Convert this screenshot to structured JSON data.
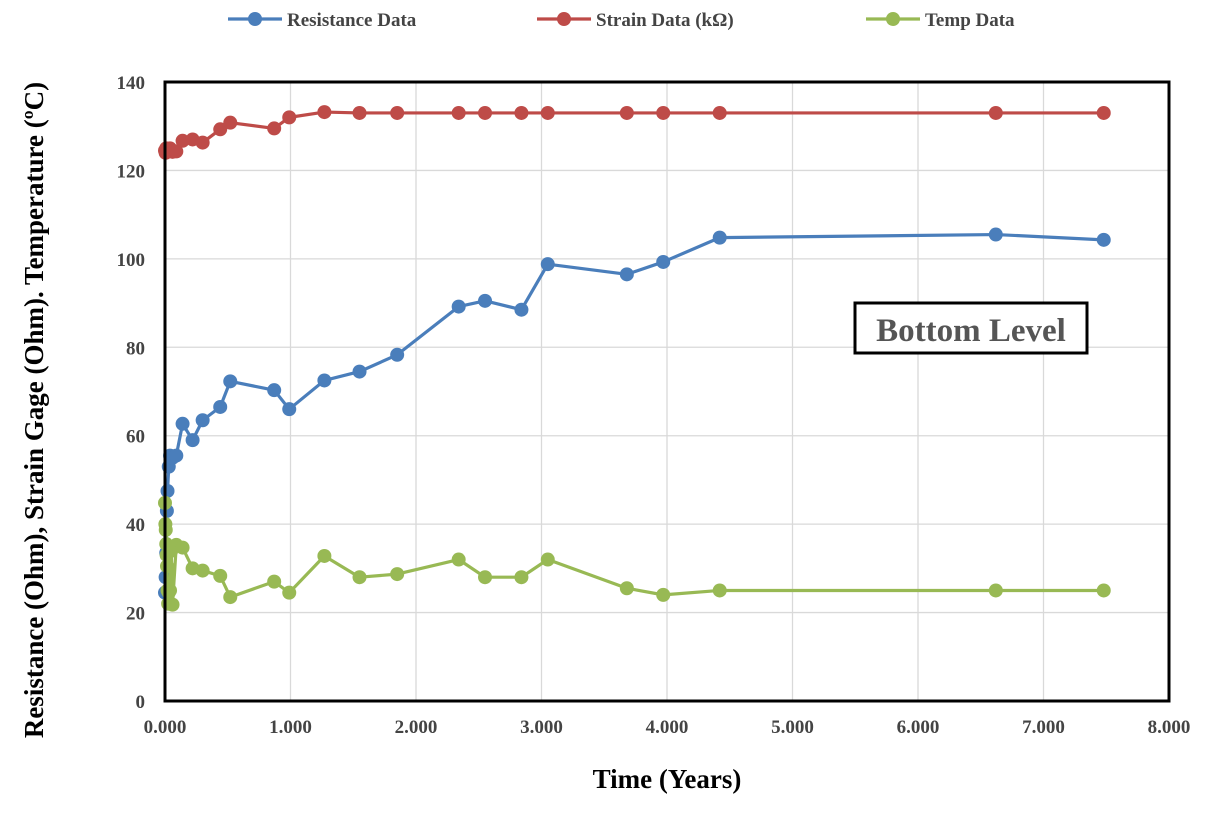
{
  "chart_data": {
    "type": "line",
    "title": "",
    "xlabel": "Time (Years)",
    "ylabel": "Resistance (Ohm), Strain Gage (Ohm). Temperature (ºC)",
    "xlim": [
      0,
      8
    ],
    "ylim": [
      0,
      140
    ],
    "x_ticks": [
      "0.000",
      "1.000",
      "2.000",
      "3.000",
      "4.000",
      "5.000",
      "6.000",
      "7.000",
      "8.000"
    ],
    "y_ticks": [
      "0",
      "20",
      "40",
      "60",
      "80",
      "100",
      "120",
      "140"
    ],
    "grid": true,
    "legend_position": "top",
    "annotation": "Bottom Level",
    "series": [
      {
        "name": "Resistance Data",
        "color": "#4a7ebb",
        "x": [
          0.0,
          0.005,
          0.01,
          0.015,
          0.02,
          0.03,
          0.04,
          0.06,
          0.09,
          0.14,
          0.22,
          0.3,
          0.44,
          0.52,
          0.87,
          0.99,
          1.27,
          1.55,
          1.85,
          2.34,
          2.55,
          2.84,
          3.05,
          3.68,
          3.97,
          4.42,
          6.62,
          7.48
        ],
        "y": [
          24.5,
          28,
          33.5,
          43,
          47.5,
          53,
          55.5,
          55,
          55.5,
          62.7,
          59,
          63.5,
          66.5,
          72.3,
          70.3,
          66,
          72.5,
          74.5,
          78.3,
          89.2,
          90.5,
          88.5,
          98.8,
          96.5,
          99.3,
          104.8,
          105.5,
          104.3
        ]
      },
      {
        "name": "Strain Data (kΩ)",
        "color": "#be4b48",
        "x": [
          0.0,
          0.005,
          0.01,
          0.02,
          0.04,
          0.06,
          0.09,
          0.14,
          0.22,
          0.3,
          0.44,
          0.52,
          0.87,
          0.99,
          1.27,
          1.55,
          1.85,
          2.34,
          2.55,
          2.84,
          3.05,
          3.68,
          3.97,
          4.42,
          6.62,
          7.48
        ],
        "y": [
          124.5,
          124,
          125,
          124.3,
          125,
          124.2,
          124.3,
          126.7,
          127,
          126.3,
          129.3,
          130.8,
          129.5,
          132,
          133.2,
          133,
          133,
          133,
          133,
          133,
          133,
          133,
          133,
          133,
          133,
          133
        ]
      },
      {
        "name": "Temp Data",
        "color": "#98b954",
        "x": [
          0.0,
          0.003,
          0.006,
          0.01,
          0.013,
          0.016,
          0.02,
          0.025,
          0.03,
          0.04,
          0.05,
          0.06,
          0.09,
          0.14,
          0.22,
          0.3,
          0.44,
          0.52,
          0.87,
          0.99,
          1.27,
          1.55,
          1.85,
          2.34,
          2.55,
          2.84,
          3.05,
          3.68,
          3.97,
          4.42,
          6.62,
          7.48
        ],
        "y": [
          44.8,
          40,
          38.7,
          35.5,
          33,
          30.5,
          25,
          22,
          24.5,
          25,
          34,
          21.8,
          35.3,
          34.7,
          30,
          29.5,
          28.3,
          23.5,
          27,
          24.5,
          32.8,
          28,
          28.7,
          32,
          28,
          28,
          32,
          25.5,
          24,
          25,
          25,
          25
        ]
      }
    ]
  }
}
